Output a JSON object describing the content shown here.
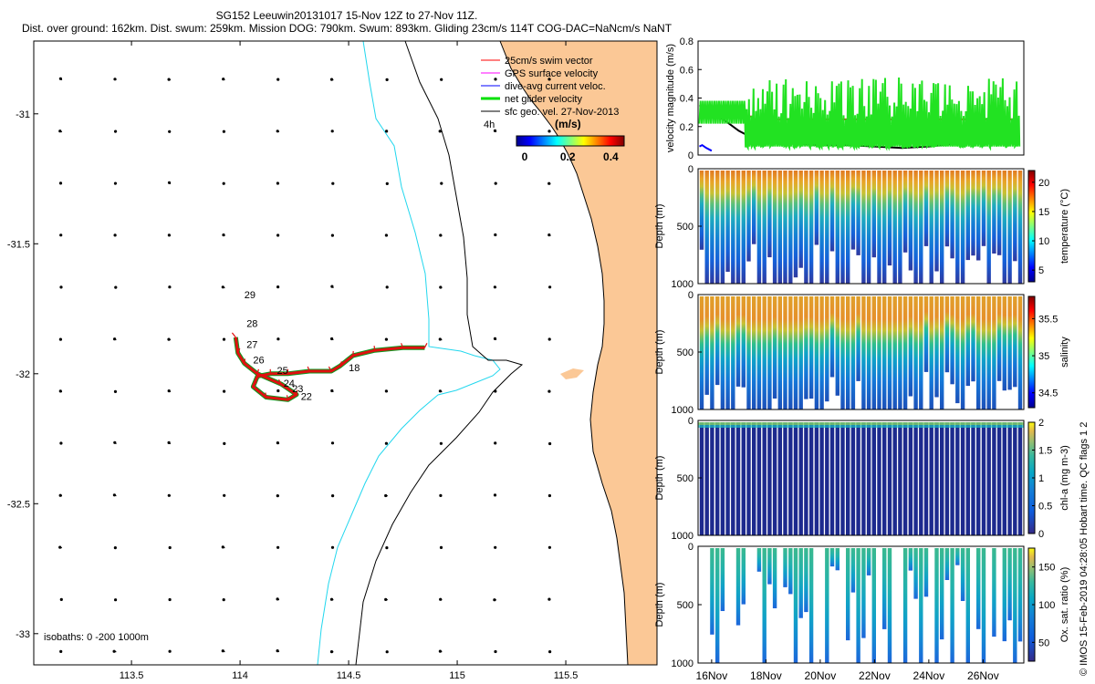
{
  "header": {
    "line1": "SG152 Leeuwin20131017 15-Nov 12Z to 27-Nov 11Z.",
    "line2": "Dist. over ground: 162km. Dist. swum: 259km. Mission DOG: 790km. Swum: 893km. Gliding 23cm/s 114T COG-DAC=NaNcm/s NaNT"
  },
  "credit": "© IMOS 15-Feb-2019 04:28:05 Hobart time. QC flags 1  2",
  "colors": {
    "land": "#fbc896",
    "isobath_200": "#22d7ee",
    "track": "#e01010",
    "net_glider": "#22e222",
    "swim_line": "#ff0000",
    "dac_line": "#1020e0",
    "sfc_line": "#000000"
  },
  "chart_data": [
    {
      "type": "map",
      "xticks": [
        "113.5",
        "114",
        "114.5",
        "115",
        "115.5"
      ],
      "xtick_values": [
        113.5,
        114,
        114.5,
        115,
        115.5
      ],
      "yticks": [
        "-31",
        "-31.5",
        "-32",
        "-32.5",
        "-33"
      ],
      "ytick_values": [
        -31,
        -31.5,
        -32,
        -32.5,
        -33
      ],
      "xlim": [
        113.05,
        115.92
      ],
      "ylim": [
        -33.12,
        -30.72
      ],
      "legend": [
        {
          "label": "25cm/s swim vector",
          "color": "#ff0000"
        },
        {
          "label": "GPS surface velocity",
          "color": "#ff00ff"
        },
        {
          "label": "dive-avg current veloc.",
          "color": "#0000ff"
        },
        {
          "label": "net glider velocity",
          "color": "#00e000"
        },
        {
          "label": "sfc geo. vel. 27-Nov-2013",
          "color": "#000000"
        }
      ],
      "time_label": "4h",
      "colorbar": {
        "title": "(m/s)",
        "ticks": [
          "0",
          "0.2",
          "0.4"
        ],
        "tick_values": [
          0,
          0.2,
          0.4
        ],
        "range": [
          0,
          0.5
        ]
      },
      "isobath_label": "isobaths: 0  -200  1000m",
      "day_labels": [
        {
          "day": "18",
          "lon": 114.5,
          "lat": -31.99
        },
        {
          "day": "22",
          "lon": 114.28,
          "lat": -32.1
        },
        {
          "day": "23",
          "lon": 114.24,
          "lat": -32.07
        },
        {
          "day": "24",
          "lon": 114.2,
          "lat": -32.05
        },
        {
          "day": "25",
          "lon": 114.17,
          "lat": -32.0
        },
        {
          "day": "26",
          "lon": 114.06,
          "lat": -31.96
        },
        {
          "day": "27",
          "lon": 114.03,
          "lat": -31.9
        },
        {
          "day": "28",
          "lon": 114.03,
          "lat": -31.82
        },
        {
          "day": "29",
          "lon": 114.02,
          "lat": -31.71
        }
      ],
      "track": [
        [
          114.85,
          -31.9
        ],
        [
          114.75,
          -31.9
        ],
        [
          114.62,
          -31.91
        ],
        [
          114.52,
          -31.93
        ],
        [
          114.46,
          -31.97
        ],
        [
          114.42,
          -31.99
        ],
        [
          114.32,
          -31.99
        ],
        [
          114.22,
          -32.0
        ],
        [
          114.14,
          -32.0
        ],
        [
          114.08,
          -32.01
        ],
        [
          114.06,
          -32.05
        ],
        [
          114.12,
          -32.09
        ],
        [
          114.22,
          -32.1
        ],
        [
          114.26,
          -32.08
        ],
        [
          114.19,
          -32.04
        ],
        [
          114.08,
          -32.0
        ],
        [
          114.02,
          -31.96
        ],
        [
          113.99,
          -31.92
        ],
        [
          113.98,
          -31.86
        ]
      ],
      "geo_vectors": {
        "lon_start": 113.18,
        "lon_step": 0.25,
        "lon_count": 12,
        "lat_start": -30.87,
        "lat_step": -0.2,
        "lat_count": 12,
        "unit": "m/s",
        "scale_deg_per_ms": 0.22
      }
    },
    {
      "type": "line",
      "ylabel": "velocity magnitude (m/s)",
      "ylim": [
        0,
        0.8
      ],
      "yticks": [
        "0",
        "0.2",
        "0.4",
        "0.6",
        "0.8"
      ],
      "ytick_values": [
        0,
        0.2,
        0.4,
        0.6,
        0.8
      ],
      "xlim": [
        15.5,
        27.5
      ],
      "series": [
        {
          "key": "swim",
          "color": "#ff0000",
          "x": [
            16.0,
            17.5,
            17.5,
            27.3
          ],
          "y": [
            0.27,
            0.27,
            0.25,
            0.25
          ]
        },
        {
          "key": "dac",
          "color": "#0000ff",
          "x": [
            15.55,
            15.65,
            15.8,
            16.0
          ],
          "y": [
            0.06,
            0.07,
            0.05,
            0.03
          ]
        },
        {
          "key": "sfc",
          "color": "#000000",
          "x": [
            15.55,
            16.0,
            16.5,
            17.0,
            17.6,
            18.3,
            19.0,
            20.0,
            21.0,
            22.0,
            23.0,
            24.0,
            25.0,
            26.0,
            27.3
          ],
          "y": [
            0.35,
            0.3,
            0.24,
            0.17,
            0.11,
            0.09,
            0.08,
            0.07,
            0.07,
            0.06,
            0.05,
            0.06,
            0.08,
            0.1,
            0.13
          ]
        },
        {
          "key": "net",
          "color": "#22e222",
          "x": [],
          "y": []
        }
      ]
    },
    {
      "type": "heatmap",
      "ylabel": "Depth (m)",
      "yticks": [
        "0",
        "500",
        "1000"
      ],
      "ytick_values": [
        0,
        500,
        1000
      ],
      "ylim": [
        1000,
        0
      ],
      "cbar_label": "temperature (°C)",
      "cbar_ticks": [
        "5",
        "10",
        "15",
        "20"
      ],
      "cbar_tick_values": [
        5,
        10,
        15,
        20
      ],
      "cbar_range": [
        3,
        22
      ]
    },
    {
      "type": "heatmap",
      "ylabel": "Depth (m)",
      "yticks": [
        "0",
        "500",
        "1000"
      ],
      "ytick_values": [
        0,
        500,
        1000
      ],
      "ylim": [
        1000,
        0
      ],
      "cbar_label": "salinity",
      "cbar_ticks": [
        "34.5",
        "35",
        "35.5"
      ],
      "cbar_tick_values": [
        34.5,
        35,
        35.5
      ],
      "cbar_range": [
        34.3,
        35.8
      ]
    },
    {
      "type": "heatmap",
      "ylabel": "Depth (m)",
      "yticks": [
        "0",
        "500",
        "1000"
      ],
      "ytick_values": [
        0,
        500,
        1000
      ],
      "ylim": [
        1000,
        0
      ],
      "cbar_label": "chl-a (mg m-3)",
      "cbar_ticks": [
        "0",
        "0.5",
        "1",
        "1.5",
        "2"
      ],
      "cbar_tick_values": [
        0,
        0.5,
        1,
        1.5,
        2
      ],
      "cbar_range": [
        0,
        2
      ]
    },
    {
      "type": "heatmap",
      "ylabel": "Depth (m)",
      "yticks": [
        "0",
        "500",
        "1000"
      ],
      "ytick_values": [
        0,
        500,
        1000
      ],
      "ylim": [
        1000,
        0
      ],
      "cbar_label": "Ox. sat. ratio (%)",
      "cbar_ticks": [
        "50",
        "100",
        "150"
      ],
      "cbar_tick_values": [
        50,
        100,
        150
      ],
      "cbar_range": [
        25,
        175
      ],
      "xticks": [
        "16Nov",
        "18Nov",
        "20Nov",
        "22Nov",
        "24Nov",
        "26Nov"
      ],
      "xtick_values": [
        16,
        18,
        20,
        22,
        24,
        26
      ],
      "xlim": [
        15.5,
        27.5
      ]
    }
  ]
}
